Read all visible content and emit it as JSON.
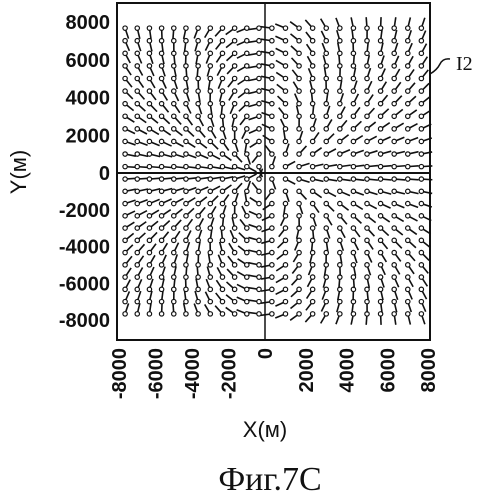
{
  "figure": {
    "caption": "Фиг.7С",
    "reference_label": "I2",
    "y_axis_label": "Y(м)",
    "x_axis_label": "X(м)",
    "y_ticks": [
      "8000",
      "6000",
      "4000",
      "2000",
      "0",
      "-2000",
      "-4000",
      "-6000",
      "-8000"
    ],
    "x_ticks": [
      "-8000",
      "-6000",
      "-4000",
      "-2000",
      "0",
      "2000",
      "4000",
      "6000",
      "8000"
    ]
  },
  "chart_data": {
    "type": "vector-field",
    "xlim": [
      -8000,
      8000
    ],
    "ylim": [
      -8000,
      8000
    ],
    "grid_step": 667
  }
}
